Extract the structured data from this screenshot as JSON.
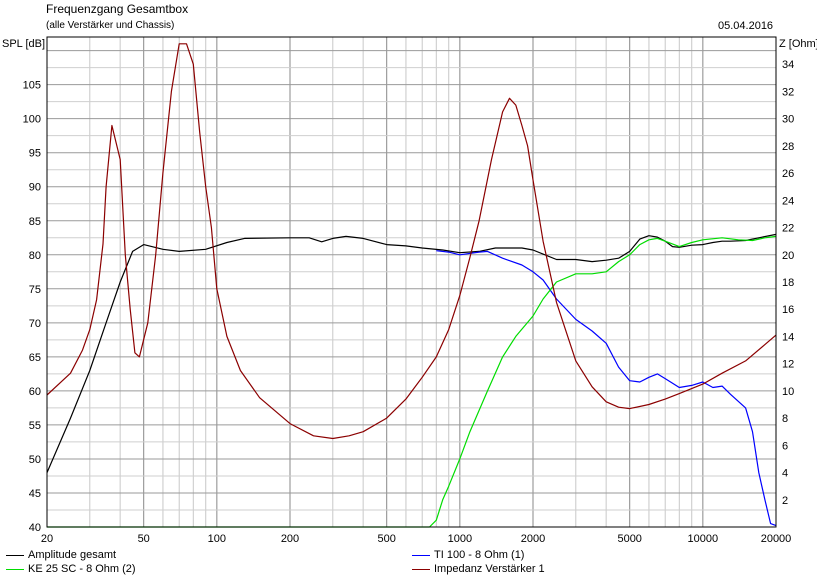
{
  "header": {
    "title": "Frequenzgang Gesamtbox",
    "subtitle": "(alle Verstärker und Chassis)",
    "date": "05.04.2016"
  },
  "chart_data": {
    "type": "line",
    "left_axis": {
      "label": "SPL [dB]",
      "range": [
        40,
        112
      ],
      "ticks": [
        40,
        45,
        50,
        55,
        60,
        65,
        70,
        75,
        80,
        85,
        90,
        95,
        100,
        105
      ]
    },
    "right_axis": {
      "label": "Z [Ohm]",
      "range": [
        0,
        36
      ],
      "ticks": [
        2,
        4,
        6,
        8,
        10,
        12,
        14,
        16,
        18,
        20,
        22,
        24,
        26,
        28,
        30,
        32,
        34
      ]
    },
    "x_axis": {
      "scale": "log",
      "range": [
        20,
        20000
      ],
      "ticks": [
        20,
        50,
        100,
        200,
        500,
        1000,
        2000,
        5000,
        10000,
        20000
      ]
    },
    "grid": true,
    "legend_position": "bottom",
    "series": [
      {
        "name": "Amplitude gesamt",
        "color": "#000000",
        "axis": "left",
        "points": [
          [
            20,
            48
          ],
          [
            25,
            56
          ],
          [
            30,
            63
          ],
          [
            35,
            70
          ],
          [
            40,
            76
          ],
          [
            45,
            80.5
          ],
          [
            50,
            81.5
          ],
          [
            60,
            80.8
          ],
          [
            70,
            80.5
          ],
          [
            90,
            80.8
          ],
          [
            110,
            81.8
          ],
          [
            130,
            82.4
          ],
          [
            200,
            82.5
          ],
          [
            240,
            82.5
          ],
          [
            270,
            81.9
          ],
          [
            300,
            82.4
          ],
          [
            340,
            82.7
          ],
          [
            400,
            82.4
          ],
          [
            500,
            81.5
          ],
          [
            600,
            81.3
          ],
          [
            700,
            81
          ],
          [
            850,
            80.7
          ],
          [
            1000,
            80.3
          ],
          [
            1200,
            80.5
          ],
          [
            1400,
            81
          ],
          [
            1600,
            81
          ],
          [
            1800,
            81
          ],
          [
            2000,
            80.7
          ],
          [
            2500,
            79.3
          ],
          [
            3000,
            79.3
          ],
          [
            3500,
            79
          ],
          [
            4000,
            79.2
          ],
          [
            4500,
            79.5
          ],
          [
            5000,
            80.5
          ],
          [
            5500,
            82.3
          ],
          [
            6000,
            82.8
          ],
          [
            6500,
            82.6
          ],
          [
            7000,
            82
          ],
          [
            7500,
            81.2
          ],
          [
            8000,
            81.1
          ],
          [
            9000,
            81.4
          ],
          [
            10000,
            81.5
          ],
          [
            11000,
            81.8
          ],
          [
            12000,
            82
          ],
          [
            13000,
            82
          ],
          [
            15000,
            82.1
          ],
          [
            17000,
            82.5
          ],
          [
            20000,
            83
          ]
        ]
      },
      {
        "name": "TI 100 - 8 Ohm (1)",
        "color": "#0000ff",
        "axis": "left",
        "points": [
          [
            800,
            80.6
          ],
          [
            900,
            80.4
          ],
          [
            1000,
            80
          ],
          [
            1200,
            80.4
          ],
          [
            1300,
            80.5
          ],
          [
            1500,
            79.5
          ],
          [
            1800,
            78.5
          ],
          [
            2000,
            77.5
          ],
          [
            2200,
            76.3
          ],
          [
            2500,
            73.5
          ],
          [
            3000,
            70.5
          ],
          [
            3500,
            68.8
          ],
          [
            4000,
            67
          ],
          [
            4500,
            63.5
          ],
          [
            5000,
            61.5
          ],
          [
            5500,
            61.3
          ],
          [
            6000,
            62
          ],
          [
            6500,
            62.5
          ],
          [
            7000,
            61.8
          ],
          [
            8000,
            60.5
          ],
          [
            9000,
            60.8
          ],
          [
            10000,
            61.3
          ],
          [
            11000,
            60.5
          ],
          [
            12000,
            60.7
          ],
          [
            13000,
            59.5
          ],
          [
            15000,
            57.5
          ],
          [
            16000,
            54
          ],
          [
            17000,
            48
          ],
          [
            18000,
            44
          ],
          [
            19000,
            40.5
          ],
          [
            20000,
            40.2
          ]
        ]
      },
      {
        "name": "KE 25 SC - 8 Ohm (2)",
        "color": "#00dd00",
        "axis": "left",
        "points": [
          [
            20,
            40
          ],
          [
            300,
            40
          ],
          [
            500,
            40
          ],
          [
            750,
            40
          ],
          [
            800,
            41
          ],
          [
            850,
            44
          ],
          [
            900,
            46
          ],
          [
            1000,
            50
          ],
          [
            1100,
            54
          ],
          [
            1300,
            60
          ],
          [
            1500,
            65
          ],
          [
            1700,
            68
          ],
          [
            2000,
            71
          ],
          [
            2200,
            73.5
          ],
          [
            2500,
            76
          ],
          [
            3000,
            77.2
          ],
          [
            3500,
            77.2
          ],
          [
            4000,
            77.5
          ],
          [
            4500,
            79
          ],
          [
            5000,
            80
          ],
          [
            5500,
            81.5
          ],
          [
            6000,
            82.2
          ],
          [
            6500,
            82.4
          ],
          [
            7000,
            82
          ],
          [
            8000,
            81.2
          ],
          [
            9000,
            81.8
          ],
          [
            10000,
            82.2
          ],
          [
            12000,
            82.5
          ],
          [
            14000,
            82.2
          ],
          [
            16000,
            82.1
          ],
          [
            18000,
            82.5
          ],
          [
            20000,
            82.7
          ]
        ]
      },
      {
        "name": "Impedanz Verstärker 1",
        "color": "#8b0000",
        "axis": "right",
        "points": [
          [
            20,
            9.7
          ],
          [
            25,
            11.3
          ],
          [
            28,
            13
          ],
          [
            30,
            14.5
          ],
          [
            32,
            16.7
          ],
          [
            34,
            20.8
          ],
          [
            35,
            25
          ],
          [
            37,
            29.5
          ],
          [
            40,
            27
          ],
          [
            42,
            20
          ],
          [
            44,
            16
          ],
          [
            46,
            12.8
          ],
          [
            48,
            12.5
          ],
          [
            52,
            15
          ],
          [
            56,
            20
          ],
          [
            60,
            26
          ],
          [
            65,
            32
          ],
          [
            70,
            35.5
          ],
          [
            75,
            35.5
          ],
          [
            80,
            34
          ],
          [
            85,
            29
          ],
          [
            90,
            25
          ],
          [
            95,
            22
          ],
          [
            100,
            17.5
          ],
          [
            110,
            14
          ],
          [
            125,
            11.5
          ],
          [
            150,
            9.5
          ],
          [
            200,
            7.6
          ],
          [
            250,
            6.7
          ],
          [
            300,
            6.5
          ],
          [
            350,
            6.7
          ],
          [
            400,
            7
          ],
          [
            500,
            8
          ],
          [
            600,
            9.4
          ],
          [
            700,
            11
          ],
          [
            800,
            12.5
          ],
          [
            900,
            14.5
          ],
          [
            1000,
            17
          ],
          [
            1100,
            19.8
          ],
          [
            1200,
            22.5
          ],
          [
            1350,
            27
          ],
          [
            1500,
            30.5
          ],
          [
            1600,
            31.5
          ],
          [
            1700,
            31
          ],
          [
            1800,
            29.5
          ],
          [
            1900,
            28
          ],
          [
            2000,
            25.5
          ],
          [
            2200,
            21
          ],
          [
            2500,
            16.5
          ],
          [
            3000,
            12.2
          ],
          [
            3500,
            10.3
          ],
          [
            4000,
            9.2
          ],
          [
            4500,
            8.8
          ],
          [
            5000,
            8.7
          ],
          [
            6000,
            9
          ],
          [
            7000,
            9.4
          ],
          [
            8000,
            9.8
          ],
          [
            10000,
            10.5
          ],
          [
            12000,
            11.3
          ],
          [
            15000,
            12.2
          ],
          [
            18000,
            13.4
          ],
          [
            20000,
            14.1
          ]
        ]
      }
    ]
  }
}
